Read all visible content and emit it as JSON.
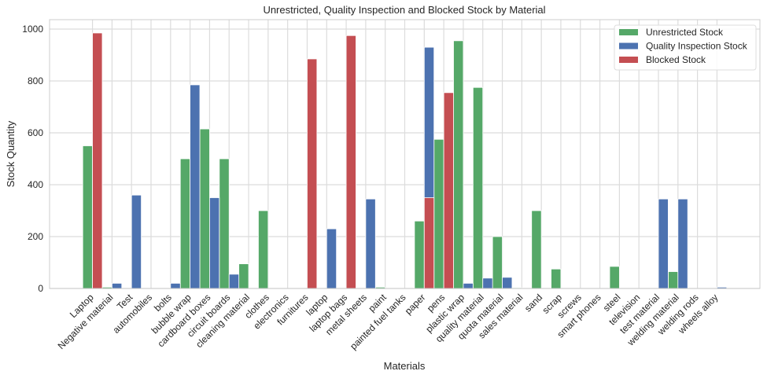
{
  "chart_data": {
    "type": "bar",
    "title": "Unrestricted, Quality Inspection and Blocked Stock by Material",
    "xlabel": "Materials",
    "ylabel": "Stock Quantity",
    "ylim": [
      0,
      1000
    ],
    "yticks": [
      0,
      200,
      400,
      600,
      800,
      1000
    ],
    "grid": true,
    "legend_position": "top-right",
    "categories": [
      "Laptop",
      "Negative material",
      "Test",
      "automobiles",
      "bolts",
      "bubble wrap",
      "cardboard boxes",
      "circuit boards",
      "cleaning material",
      "clothes",
      "electronics",
      "furnitures",
      "laptop",
      "laptop bags",
      "metal sheets",
      "paint",
      "painted fuel tanks",
      "paper",
      "pens",
      "plastic wrap",
      "quality material",
      "quota material",
      "sales material",
      "sand",
      "scrap",
      "screws",
      "smart phones",
      "steel",
      "television",
      "test material",
      "welding material",
      "welding rods",
      "wheels alloy"
    ],
    "series": [
      {
        "name": "Unrestricted Stock",
        "color": "#55a868",
        "values": [
          550,
          5,
          0,
          0,
          0,
          500,
          615,
          500,
          95,
          300,
          0,
          0,
          0,
          0,
          0,
          5,
          0,
          260,
          575,
          955,
          775,
          200,
          3,
          300,
          75,
          0,
          0,
          85,
          0,
          0,
          65,
          0,
          0
        ]
      },
      {
        "name": "Quality Inspection Stock",
        "color": "#4c72b0",
        "values": [
          0,
          20,
          360,
          0,
          20,
          785,
          350,
          55,
          0,
          0,
          0,
          0,
          230,
          0,
          345,
          0,
          0,
          930,
          0,
          20,
          40,
          43,
          0,
          0,
          0,
          0,
          0,
          0,
          0,
          345,
          345,
          0,
          5
        ]
      },
      {
        "name": "Blocked Stock",
        "color": "#c44e52",
        "values": [
          985,
          0,
          0,
          0,
          0,
          0,
          0,
          0,
          0,
          0,
          0,
          885,
          0,
          975,
          0,
          0,
          0,
          350,
          755,
          0,
          0,
          0,
          0,
          0,
          0,
          0,
          0,
          0,
          0,
          0,
          0,
          0,
          0
        ]
      }
    ]
  }
}
